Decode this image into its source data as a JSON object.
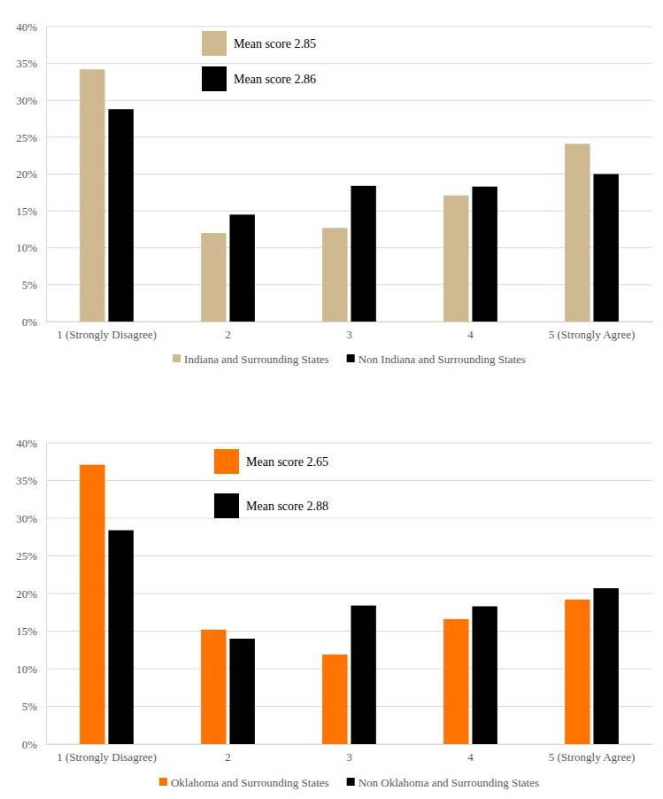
{
  "chart_data": [
    {
      "type": "bar",
      "categories": [
        "1 (Strongly Disagree)",
        "2",
        "3",
        "4",
        "5 (Strongly Agree)"
      ],
      "series": [
        {
          "name": "Indiana and Surrounding States",
          "color": "#cfb991",
          "values": [
            34.2,
            12.0,
            12.7,
            17.1,
            24.1
          ]
        },
        {
          "name": "Non Indiana and Surrounding States",
          "color": "#000000",
          "values": [
            28.8,
            14.5,
            18.4,
            18.3,
            20.0
          ]
        }
      ],
      "annotations": [
        "Mean score 2.85",
        "Mean score 2.86"
      ],
      "ylim": [
        0,
        40
      ],
      "yticks": [
        {
          "value": 0,
          "label": "0%"
        },
        {
          "value": 5,
          "label": "5%"
        },
        {
          "value": 10,
          "label": "10%"
        },
        {
          "value": 15,
          "label": "15%"
        },
        {
          "value": 20,
          "label": "20%"
        },
        {
          "value": 25,
          "label": "25%"
        },
        {
          "value": 30,
          "label": "30%"
        },
        {
          "value": 35,
          "label": "35%"
        },
        {
          "value": 40,
          "label": "40%"
        }
      ],
      "grid": true,
      "legend": "bottom"
    },
    {
      "type": "bar",
      "categories": [
        "1 (Strongly Disagree)",
        "2",
        "3",
        "4",
        "5 (Strongly Agree)"
      ],
      "series": [
        {
          "name": "Oklahoma and Surrounding States",
          "color": "#ff7300",
          "values": [
            37.1,
            15.2,
            11.9,
            16.6,
            19.2
          ]
        },
        {
          "name": "Non Oklahoma and Surrounding States",
          "color": "#000000",
          "values": [
            28.4,
            14.0,
            18.4,
            18.3,
            20.7
          ]
        }
      ],
      "annotations": [
        "Mean score 2.65",
        "Mean score 2.88"
      ],
      "ylim": [
        0,
        40
      ],
      "yticks": [
        {
          "value": 0,
          "label": "0%"
        },
        {
          "value": 5,
          "label": "5%"
        },
        {
          "value": 10,
          "label": "10%"
        },
        {
          "value": 15,
          "label": "15%"
        },
        {
          "value": 20,
          "label": "20%"
        },
        {
          "value": 25,
          "label": "25%"
        },
        {
          "value": 30,
          "label": "30%"
        },
        {
          "value": 35,
          "label": "35%"
        },
        {
          "value": 40,
          "label": "40%"
        }
      ],
      "grid": true,
      "legend": "bottom"
    }
  ]
}
